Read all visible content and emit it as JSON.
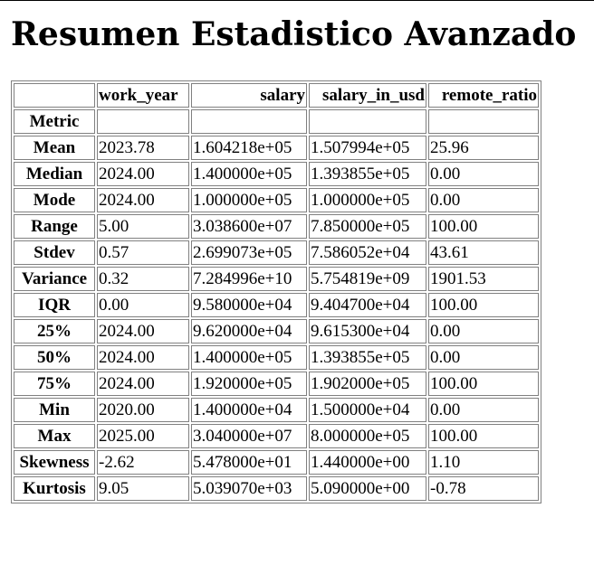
{
  "page": {
    "title": "Resumen Estadistico Avanzado"
  },
  "table": {
    "corner": "",
    "columns": [
      "work_year",
      "salary",
      "salary_in_usd",
      "remote_ratio"
    ],
    "index_name": "Metric",
    "rows": [
      {
        "metric": "Mean",
        "values": [
          "2023.78",
          "1.604218e+05",
          "1.507994e+05",
          "25.96"
        ]
      },
      {
        "metric": "Median",
        "values": [
          "2024.00",
          "1.400000e+05",
          "1.393855e+05",
          "0.00"
        ]
      },
      {
        "metric": "Mode",
        "values": [
          "2024.00",
          "1.000000e+05",
          "1.000000e+05",
          "0.00"
        ]
      },
      {
        "metric": "Range",
        "values": [
          "5.00",
          "3.038600e+07",
          "7.850000e+05",
          "100.00"
        ]
      },
      {
        "metric": "Stdev",
        "values": [
          "0.57",
          "2.699073e+05",
          "7.586052e+04",
          "43.61"
        ]
      },
      {
        "metric": "Variance",
        "values": [
          "0.32",
          "7.284996e+10",
          "5.754819e+09",
          "1901.53"
        ]
      },
      {
        "metric": "IQR",
        "values": [
          "0.00",
          "9.580000e+04",
          "9.404700e+04",
          "100.00"
        ]
      },
      {
        "metric": "25%",
        "values": [
          "2024.00",
          "9.620000e+04",
          "9.615300e+04",
          "0.00"
        ]
      },
      {
        "metric": "50%",
        "values": [
          "2024.00",
          "1.400000e+05",
          "1.393855e+05",
          "0.00"
        ]
      },
      {
        "metric": "75%",
        "values": [
          "2024.00",
          "1.920000e+05",
          "1.902000e+05",
          "100.00"
        ]
      },
      {
        "metric": "Min",
        "values": [
          "2020.00",
          "1.400000e+04",
          "1.500000e+04",
          "0.00"
        ]
      },
      {
        "metric": "Max",
        "values": [
          "2025.00",
          "3.040000e+07",
          "8.000000e+05",
          "100.00"
        ]
      },
      {
        "metric": "Skewness",
        "values": [
          "-2.62",
          "5.478000e+01",
          "1.440000e+00",
          "1.10"
        ]
      },
      {
        "metric": "Kurtosis",
        "values": [
          "9.05",
          "5.039070e+03",
          "5.090000e+00",
          "-0.78"
        ]
      }
    ]
  }
}
